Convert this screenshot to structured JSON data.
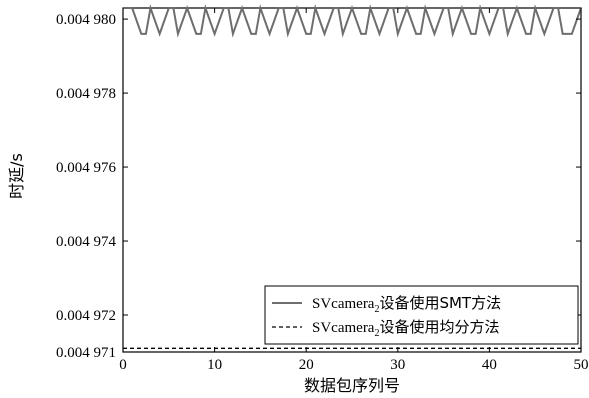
{
  "chart_data": {
    "type": "line",
    "xlabel": "数据包序列号",
    "ylabel": "时延/s",
    "xlim": [
      0,
      50
    ],
    "ylim": [
      0.004971,
      0.0049803
    ],
    "xticks": [
      0,
      10,
      20,
      30,
      40,
      50
    ],
    "xtick_labels": [
      "0",
      "10",
      "20",
      "30",
      "40",
      "50"
    ],
    "yticks": [
      0.004971,
      0.004972,
      0.004974,
      0.004976,
      0.004978,
      0.00498
    ],
    "ytick_labels": [
      "0.004 971",
      "0.004 972",
      "0.004 974",
      "0.004 976",
      "0.004 978",
      "0.004 980"
    ],
    "grid": false,
    "legend_position": "bottom-right",
    "series": [
      {
        "name_prefix": "SVcamera",
        "name_sub": "2",
        "name_suffix": "设备使用SMT方法",
        "color": "#6e6e6e",
        "style": "solid",
        "x": [
          0,
          1,
          2,
          2.5,
          3,
          4,
          5,
          5.5,
          6,
          7,
          8,
          8.5,
          9,
          10,
          11,
          11.5,
          12,
          13,
          14,
          14.5,
          15,
          16,
          17,
          17.5,
          18,
          19,
          20,
          20.5,
          21,
          22,
          23,
          23.5,
          24,
          25,
          26,
          26.5,
          27,
          28,
          29,
          29.5,
          30,
          31,
          32,
          32.5,
          33,
          34,
          35,
          35.5,
          36,
          37,
          38,
          38.5,
          39,
          40,
          41,
          41.5,
          42,
          43,
          44,
          44.5,
          45,
          46,
          47,
          47.5,
          48,
          49,
          50
        ],
        "y": [
          0.0049803,
          0.0049803,
          0.0049796,
          0.0049796,
          0.0049803,
          0.0049796,
          0.0049803,
          0.0049803,
          0.0049796,
          0.0049803,
          0.0049796,
          0.0049796,
          0.0049803,
          0.0049796,
          0.0049803,
          0.0049803,
          0.0049796,
          0.0049803,
          0.0049796,
          0.0049796,
          0.0049803,
          0.0049796,
          0.0049803,
          0.0049803,
          0.0049796,
          0.0049803,
          0.0049796,
          0.0049796,
          0.0049803,
          0.0049796,
          0.0049803,
          0.0049803,
          0.0049796,
          0.0049803,
          0.0049796,
          0.0049796,
          0.0049803,
          0.0049796,
          0.0049803,
          0.0049803,
          0.0049796,
          0.0049803,
          0.0049796,
          0.0049796,
          0.0049803,
          0.0049796,
          0.0049803,
          0.0049803,
          0.0049796,
          0.0049803,
          0.0049796,
          0.0049796,
          0.0049803,
          0.0049796,
          0.0049803,
          0.0049803,
          0.0049796,
          0.0049803,
          0.0049796,
          0.0049796,
          0.0049803,
          0.0049796,
          0.0049803,
          0.0049803,
          0.0049796,
          0.0049796,
          0.0049803
        ]
      },
      {
        "name_prefix": "SVcamera",
        "name_sub": "2",
        "name_suffix": "设备使用均分方法",
        "color": "#000000",
        "style": "dashed",
        "x": [
          0,
          50
        ],
        "y": [
          0.0049711,
          0.0049711
        ]
      }
    ]
  }
}
